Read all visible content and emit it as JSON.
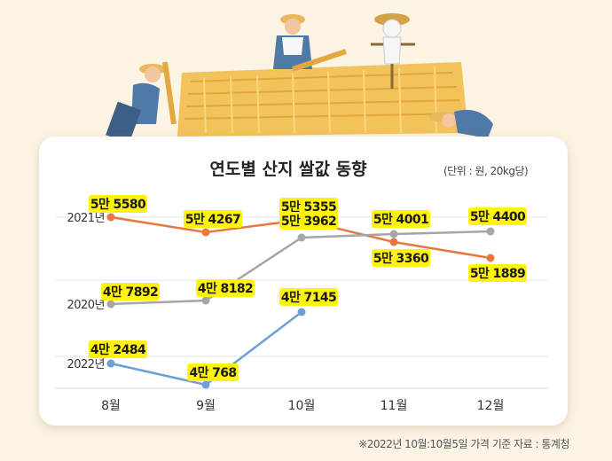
{
  "title": "연도별 산지 쌀값 동향",
  "unit_note": "(단위 : 원, 20kg당)",
  "source_note": "※2022년 10월:10월5일 가격 기준   자료 : 통계청",
  "colors": {
    "y2021": "#e8773c",
    "y2020": "#a6a6a6",
    "y2022": "#6d9fd4",
    "label_bg": "#fff200",
    "label_text": "#1a1a1a"
  },
  "chart_data": {
    "type": "line",
    "categories": [
      "8월",
      "9월",
      "10월",
      "11월",
      "12월"
    ],
    "series": [
      {
        "name": "2021년",
        "values": [
          55580,
          54267,
          55355,
          53360,
          51889
        ],
        "labels": [
          "5만 5580",
          "5만 4267",
          "5만 5355",
          "5만 3360",
          "5만 1889"
        ]
      },
      {
        "name": "2020년",
        "values": [
          47892,
          48182,
          53962,
          54001,
          54400
        ],
        "labels": [
          "4만 7892",
          "4만 8182",
          "5만 3962",
          "5만 4001",
          "5만 4400"
        ]
      },
      {
        "name": "2022년",
        "values": [
          42484,
          40768,
          47145,
          null,
          null
        ],
        "labels": [
          "4만 2484",
          "4만 768",
          "4만 7145",
          "",
          ""
        ]
      }
    ],
    "xlabel": "",
    "ylabel": "",
    "grid": true,
    "legend": "series names at left of each line"
  }
}
